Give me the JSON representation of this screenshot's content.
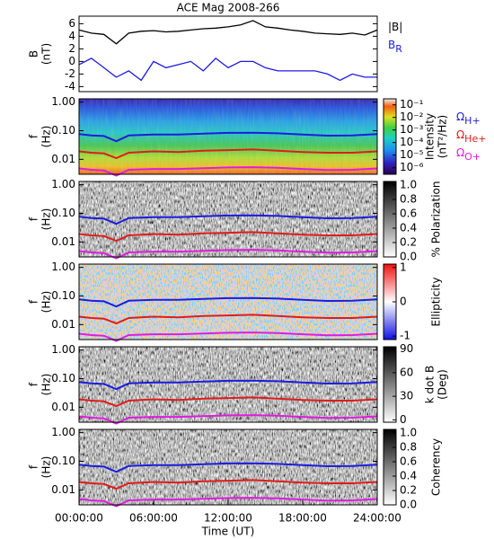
{
  "chart_data": [
    {
      "type": "line",
      "title": "ACE Mag 2008-266",
      "ylabel": [
        "B",
        "(nT)"
      ],
      "xlim": [
        0,
        24
      ],
      "ylim": [
        -4.8,
        7.2
      ],
      "yticks": [
        -4,
        -2,
        0,
        2,
        4,
        6
      ],
      "legend": "right",
      "x": [
        0,
        1,
        2,
        3,
        4,
        5,
        6,
        7,
        8,
        9,
        10,
        11,
        12,
        13,
        14,
        15,
        16,
        17,
        18,
        19,
        20,
        21,
        22,
        23,
        24
      ],
      "series": [
        {
          "name": "|B|",
          "color": "#000000",
          "values": [
            5,
            4.5,
            4.3,
            2.8,
            4.5,
            4.8,
            4.9,
            4.7,
            4.8,
            5,
            5.2,
            5.3,
            5.5,
            5.8,
            6.5,
            5.5,
            5.3,
            5,
            4.8,
            4.5,
            4.4,
            4.3,
            4.5,
            4.2,
            5
          ]
        },
        {
          "name": "B",
          "name_sub": "R",
          "color": "#1c1ce0",
          "values": [
            -0.5,
            0.5,
            -1,
            -2.5,
            -1.5,
            -3,
            0,
            -1,
            -0.5,
            0,
            -1.5,
            0.5,
            -1,
            0,
            0,
            -1,
            -1.5,
            -1.5,
            -1.5,
            -1.5,
            -2,
            -3,
            -2,
            -2.5,
            -2.5
          ]
        }
      ]
    },
    {
      "type": "spectrogram",
      "colormap": "rainbow",
      "ylabel": [
        "f",
        "(Hz)"
      ],
      "log_y": true,
      "xlim": [
        0,
        24
      ],
      "ylim": [
        0.003,
        1.3
      ],
      "yticks": [
        {
          "value": 1,
          "label": "1.00"
        },
        {
          "value": 0.1,
          "label": "0.10"
        },
        {
          "value": 0.01,
          "label": "0.01"
        }
      ],
      "clabel": [
        "Intensity",
        "(nT²/Hz)"
      ],
      "clog": true,
      "clim": [
        3e-07,
        0.3
      ],
      "cticks": [
        {
          "value": 0.1,
          "label": "10⁻¹"
        },
        {
          "value": 0.01,
          "label": "10⁻²"
        },
        {
          "value": 0.001,
          "label": "10⁻³"
        },
        {
          "value": 0.0001,
          "label": "10⁻⁴"
        },
        {
          "value": 1e-05,
          "label": "10⁻⁵"
        },
        {
          "value": 1e-06,
          "label": "10⁻⁶"
        }
      ],
      "legend": "right",
      "x": [
        0,
        1,
        2,
        3,
        4,
        6,
        8,
        10,
        12,
        14,
        16,
        18,
        20,
        22,
        24
      ],
      "series": [
        {
          "name": "Ω",
          "name_sub": "H+",
          "color": "#1c1ce0",
          "values": [
            0.076,
            0.068,
            0.065,
            0.043,
            0.068,
            0.074,
            0.073,
            0.079,
            0.084,
            0.085,
            0.081,
            0.073,
            0.067,
            0.068,
            0.076
          ]
        },
        {
          "name": "Ω",
          "name_sub": "He+",
          "color": "#e01c1c",
          "values": [
            0.019,
            0.017,
            0.016,
            0.011,
            0.017,
            0.019,
            0.018,
            0.02,
            0.021,
            0.022,
            0.02,
            0.018,
            0.017,
            0.017,
            0.019
          ]
        },
        {
          "name": "Ω",
          "name_sub": "O+",
          "color": "#e01ce0",
          "values": [
            0.0048,
            0.0043,
            0.0041,
            0.0027,
            0.0043,
            0.0046,
            0.0046,
            0.0049,
            0.0052,
            0.0053,
            0.0051,
            0.0046,
            0.0042,
            0.0043,
            0.0048
          ]
        }
      ]
    },
    {
      "type": "spectrogram",
      "colormap": "gray",
      "ylabel": [
        "f",
        "(Hz)"
      ],
      "log_y": true,
      "xlim": [
        0,
        24
      ],
      "ylim": [
        0.003,
        1.3
      ],
      "yticks": [
        {
          "value": 1,
          "label": "1.00"
        },
        {
          "value": 0.1,
          "label": "0.10"
        },
        {
          "value": 0.01,
          "label": "0.01"
        }
      ],
      "clabel": [
        "% Polarization"
      ],
      "clim": [
        0,
        1.05
      ],
      "cticks": [
        {
          "value": 0,
          "label": "0.0"
        },
        {
          "value": 0.2,
          "label": "0.2"
        },
        {
          "value": 0.4,
          "label": "0.4"
        },
        {
          "value": 0.6,
          "label": "0.6"
        },
        {
          "value": 0.8,
          "label": "0.8"
        },
        {
          "value": 1,
          "label": "1.0"
        }
      ],
      "x": [
        0,
        1,
        2,
        3,
        4,
        6,
        8,
        10,
        12,
        14,
        16,
        18,
        20,
        22,
        24
      ],
      "series": [
        {
          "color": "#1c1ce0",
          "values": [
            0.076,
            0.068,
            0.065,
            0.043,
            0.068,
            0.074,
            0.073,
            0.079,
            0.084,
            0.085,
            0.081,
            0.073,
            0.067,
            0.068,
            0.076
          ]
        },
        {
          "color": "#e01c1c",
          "values": [
            0.019,
            0.017,
            0.016,
            0.011,
            0.017,
            0.019,
            0.018,
            0.02,
            0.021,
            0.022,
            0.02,
            0.018,
            0.017,
            0.017,
            0.019
          ]
        },
        {
          "color": "#e01ce0",
          "values": [
            0.0048,
            0.0043,
            0.0041,
            0.0027,
            0.0043,
            0.0046,
            0.0046,
            0.0049,
            0.0052,
            0.0053,
            0.0051,
            0.0046,
            0.0042,
            0.0043,
            0.0048
          ]
        }
      ]
    },
    {
      "type": "spectrogram",
      "colormap": "bwr",
      "ylabel": [
        "f",
        "(Hz)"
      ],
      "log_y": true,
      "xlim": [
        0,
        24
      ],
      "ylim": [
        0.003,
        1.3
      ],
      "yticks": [
        {
          "value": 1,
          "label": "1.00"
        },
        {
          "value": 0.1,
          "label": "0.10"
        },
        {
          "value": 0.01,
          "label": "0.01"
        }
      ],
      "clabel": [
        "Ellipticity"
      ],
      "clim": [
        -1.1,
        1.1
      ],
      "cticks": [
        1,
        0,
        -1
      ],
      "x": [
        0,
        1,
        2,
        3,
        4,
        6,
        8,
        10,
        12,
        14,
        16,
        18,
        20,
        22,
        24
      ],
      "series": [
        {
          "color": "#1c1ce0",
          "values": [
            0.076,
            0.068,
            0.065,
            0.043,
            0.068,
            0.074,
            0.073,
            0.079,
            0.084,
            0.085,
            0.081,
            0.073,
            0.067,
            0.068,
            0.076
          ]
        },
        {
          "color": "#e01c1c",
          "values": [
            0.019,
            0.017,
            0.016,
            0.011,
            0.017,
            0.019,
            0.018,
            0.02,
            0.021,
            0.022,
            0.02,
            0.018,
            0.017,
            0.017,
            0.019
          ]
        },
        {
          "color": "#e01ce0",
          "values": [
            0.0048,
            0.0043,
            0.0041,
            0.0027,
            0.0043,
            0.0046,
            0.0046,
            0.0049,
            0.0052,
            0.0053,
            0.0051,
            0.0046,
            0.0042,
            0.0043,
            0.0048
          ]
        }
      ]
    },
    {
      "type": "spectrogram",
      "colormap": "gray",
      "ylabel": [
        "f",
        "(Hz)"
      ],
      "log_y": true,
      "xlim": [
        0,
        24
      ],
      "ylim": [
        0.003,
        1.3
      ],
      "yticks": [
        {
          "value": 1,
          "label": "1.00"
        },
        {
          "value": 0.1,
          "label": "0.10"
        },
        {
          "value": 0.01,
          "label": "0.01"
        }
      ],
      "clabel": [
        "k dot B",
        "(Deg)"
      ],
      "clim": [
        -3,
        93
      ],
      "cticks": [
        90,
        60,
        30,
        0
      ],
      "x": [
        0,
        1,
        2,
        3,
        4,
        6,
        8,
        10,
        12,
        14,
        16,
        18,
        20,
        22,
        24
      ],
      "series": [
        {
          "color": "#1c1ce0",
          "values": [
            0.076,
            0.068,
            0.065,
            0.043,
            0.068,
            0.074,
            0.073,
            0.079,
            0.084,
            0.085,
            0.081,
            0.073,
            0.067,
            0.068,
            0.076
          ]
        },
        {
          "color": "#e01c1c",
          "values": [
            0.019,
            0.017,
            0.016,
            0.011,
            0.017,
            0.019,
            0.018,
            0.02,
            0.021,
            0.022,
            0.02,
            0.018,
            0.017,
            0.017,
            0.019
          ]
        },
        {
          "color": "#e01ce0",
          "values": [
            0.0048,
            0.0043,
            0.0041,
            0.0027,
            0.0043,
            0.0046,
            0.0046,
            0.0049,
            0.0052,
            0.0053,
            0.0051,
            0.0046,
            0.0042,
            0.0043,
            0.0048
          ]
        }
      ]
    },
    {
      "type": "spectrogram",
      "colormap": "gray",
      "ylabel": [
        "f",
        "(Hz)"
      ],
      "log_y": true,
      "xlim": [
        0,
        24
      ],
      "ylim": [
        0.003,
        1.3
      ],
      "yticks": [
        {
          "value": 1,
          "label": "1.00"
        },
        {
          "value": 0.1,
          "label": "0.10"
        },
        {
          "value": 0.01,
          "label": "0.01"
        }
      ],
      "clabel": [
        "Coherency"
      ],
      "clim": [
        0,
        1.05
      ],
      "cticks": [
        {
          "value": 0,
          "label": "0.0"
        },
        {
          "value": 0.2,
          "label": "0.2"
        },
        {
          "value": 0.4,
          "label": "0.4"
        },
        {
          "value": 0.6,
          "label": "0.6"
        },
        {
          "value": 0.8,
          "label": "0.8"
        },
        {
          "value": 1,
          "label": "1.0"
        }
      ],
      "xlabel": "Time (UT)",
      "xticks": [
        {
          "value": 0,
          "label": "00:00:00"
        },
        {
          "value": 6,
          "label": "06:00:00"
        },
        {
          "value": 12,
          "label": "12:00:00"
        },
        {
          "value": 18,
          "label": "18:00:00"
        },
        {
          "value": 24,
          "label": "24:00:00"
        }
      ],
      "x": [
        0,
        1,
        2,
        3,
        4,
        6,
        8,
        10,
        12,
        14,
        16,
        18,
        20,
        22,
        24
      ],
      "series": [
        {
          "color": "#1c1ce0",
          "values": [
            0.076,
            0.068,
            0.065,
            0.043,
            0.068,
            0.074,
            0.073,
            0.079,
            0.084,
            0.085,
            0.081,
            0.073,
            0.067,
            0.068,
            0.076
          ]
        },
        {
          "color": "#e01c1c",
          "values": [
            0.019,
            0.017,
            0.016,
            0.011,
            0.017,
            0.019,
            0.018,
            0.02,
            0.021,
            0.022,
            0.02,
            0.018,
            0.017,
            0.017,
            0.019
          ]
        },
        {
          "color": "#e01ce0",
          "values": [
            0.0048,
            0.0043,
            0.0041,
            0.0027,
            0.0043,
            0.0046,
            0.0046,
            0.0049,
            0.0052,
            0.0053,
            0.0051,
            0.0046,
            0.0042,
            0.0043,
            0.0048
          ]
        }
      ]
    }
  ]
}
